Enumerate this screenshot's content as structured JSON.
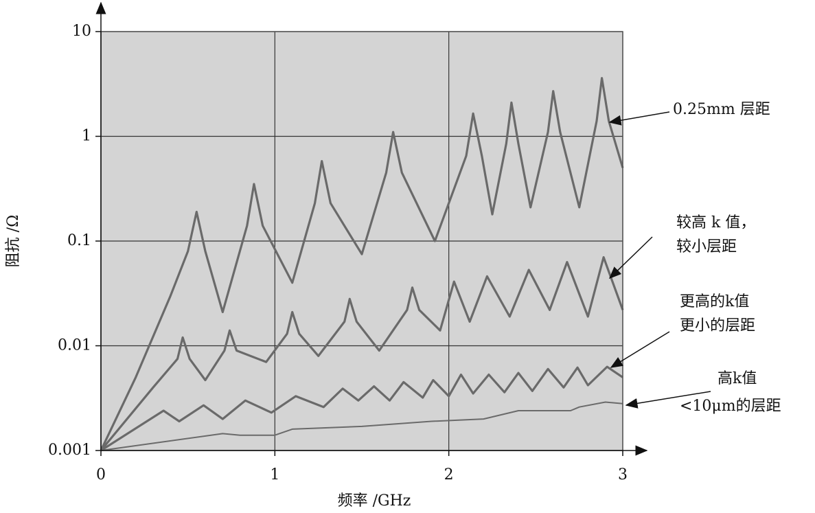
{
  "chart_data": {
    "type": "line",
    "log_y": true,
    "grid": true,
    "background": "#d4d4d4",
    "x_label": "频率 /GHz",
    "y_label": "阻抗 /Ω",
    "xlim": [
      0,
      3
    ],
    "xticks": [
      0,
      1,
      2,
      3
    ],
    "ylim": [
      0.001,
      10
    ],
    "yticks": [
      0.001,
      0.01,
      0.1,
      1,
      10
    ],
    "series": [
      {
        "color": "#6a6a6a",
        "x": [
          0,
          0.2,
          0.4,
          0.5,
          0.55,
          0.6,
          0.7,
          0.84,
          0.88,
          0.93,
          1.1,
          1.23,
          1.27,
          1.32,
          1.5,
          1.64,
          1.68,
          1.73,
          1.92,
          2.1,
          2.14,
          2.19,
          2.25,
          2.33,
          2.36,
          2.4,
          2.47,
          2.57,
          2.6,
          2.64,
          2.75,
          2.85,
          2.88,
          2.92,
          3.0
        ],
        "values": [
          0.001,
          0.005,
          0.03,
          0.08,
          0.19,
          0.08,
          0.021,
          0.14,
          0.35,
          0.14,
          0.04,
          0.23,
          0.58,
          0.23,
          0.075,
          0.45,
          1.1,
          0.45,
          0.1,
          0.65,
          1.65,
          0.65,
          0.18,
          0.85,
          2.1,
          0.85,
          0.21,
          1.1,
          2.7,
          1.1,
          0.21,
          1.4,
          3.6,
          1.4,
          0.5
        ]
      },
      {
        "color": "#6a6a6a",
        "x": [
          0,
          0.3,
          0.44,
          0.47,
          0.51,
          0.6,
          0.71,
          0.74,
          0.78,
          0.95,
          1.07,
          1.1,
          1.14,
          1.25,
          1.4,
          1.43,
          1.47,
          1.6,
          1.76,
          1.79,
          1.83,
          1.95,
          2.03,
          2.12,
          2.22,
          2.35,
          2.46,
          2.58,
          2.68,
          2.8,
          2.89,
          3.0
        ],
        "values": [
          0.001,
          0.004,
          0.0075,
          0.012,
          0.0075,
          0.0047,
          0.009,
          0.014,
          0.009,
          0.007,
          0.013,
          0.021,
          0.013,
          0.008,
          0.017,
          0.028,
          0.017,
          0.009,
          0.022,
          0.036,
          0.022,
          0.014,
          0.041,
          0.017,
          0.046,
          0.019,
          0.053,
          0.022,
          0.063,
          0.019,
          0.07,
          0.022
        ]
      },
      {
        "color": "#6a6a6a",
        "x": [
          0,
          0.36,
          0.45,
          0.59,
          0.7,
          0.83,
          0.98,
          1.12,
          1.28,
          1.39,
          1.48,
          1.57,
          1.66,
          1.74,
          1.85,
          1.91,
          2.0,
          2.07,
          2.14,
          2.23,
          2.32,
          2.4,
          2.48,
          2.57,
          2.66,
          2.74,
          2.8,
          2.91,
          3.0
        ],
        "values": [
          0.001,
          0.0024,
          0.0019,
          0.0027,
          0.002,
          0.003,
          0.0023,
          0.0033,
          0.0026,
          0.0039,
          0.003,
          0.0041,
          0.003,
          0.0045,
          0.0032,
          0.0047,
          0.0033,
          0.0053,
          0.0035,
          0.0053,
          0.0036,
          0.0055,
          0.0037,
          0.006,
          0.004,
          0.0062,
          0.0042,
          0.0063,
          0.005
        ]
      },
      {
        "color": "#7a7a7a",
        "thin": true,
        "x": [
          0,
          0.7,
          0.8,
          1.0,
          1.1,
          1.5,
          1.9,
          2.2,
          2.4,
          2.7,
          2.75,
          2.9,
          3.0
        ],
        "values": [
          0.001,
          0.00145,
          0.0014,
          0.0014,
          0.0016,
          0.0017,
          0.0019,
          0.002,
          0.0024,
          0.0024,
          0.0026,
          0.0029,
          0.0028
        ]
      }
    ],
    "annotations": [
      "0.25mm 层距",
      "较高 k 值，",
      "较小层距",
      "更高的k值",
      "更小的层距",
      "高k值",
      "<10μm的层距"
    ]
  }
}
